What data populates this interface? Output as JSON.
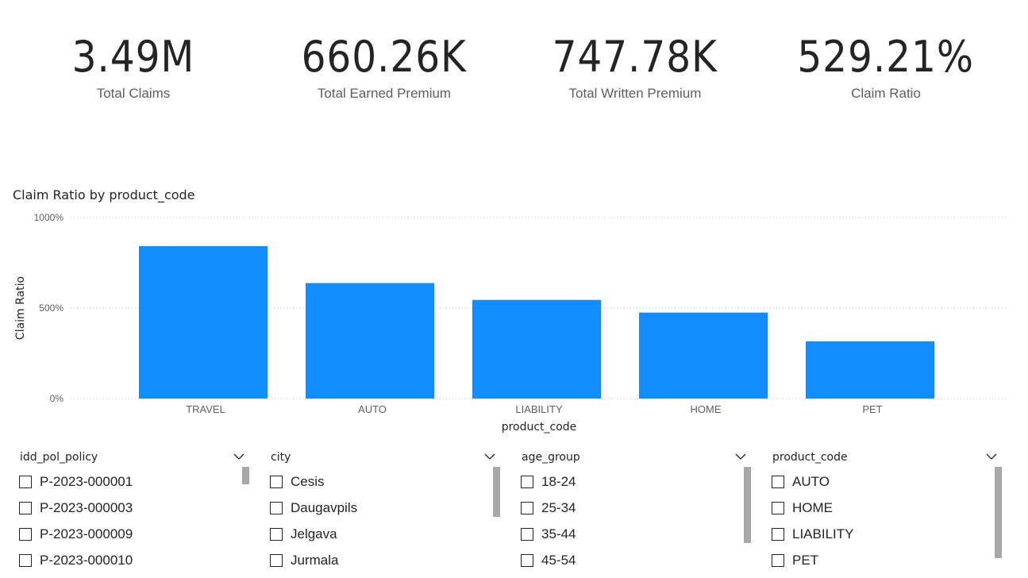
{
  "kpis": [
    {
      "value": "3.49M",
      "label": "Total Claims"
    },
    {
      "value": "660.26K",
      "label": "Total Earned Premium"
    },
    {
      "value": "747.78K",
      "label": "Total Written Premium"
    },
    {
      "value": "529.21%",
      "label": "Claim Ratio"
    }
  ],
  "chart_data": {
    "type": "bar",
    "title": "Claim Ratio by product_code",
    "xlabel": "product_code",
    "ylabel": "Claim Ratio",
    "categories": [
      "TRAVEL",
      "AUTO",
      "LIABILITY",
      "HOME",
      "PET"
    ],
    "values": [
      842,
      638,
      545,
      475,
      316
    ],
    "ylim": [
      0,
      1000
    ],
    "yticks": [
      "0%",
      "500%",
      "1000%"
    ],
    "grid": true,
    "bar_color": "#118DFF"
  },
  "slicers": [
    {
      "title": "idd_pol_policy",
      "items": [
        "P-2023-000001",
        "P-2023-000003",
        "P-2023-000009",
        "P-2023-000010"
      ]
    },
    {
      "title": "city",
      "items": [
        "Cesis",
        "Daugavpils",
        "Jelgava",
        "Jurmala"
      ]
    },
    {
      "title": "age_group",
      "items": [
        "18-24",
        "25-34",
        "35-44",
        "45-54"
      ]
    },
    {
      "title": "product_code",
      "items": [
        "AUTO",
        "HOME",
        "LIABILITY",
        "PET"
      ]
    }
  ],
  "icons": {
    "dropdown": "chevron-down-icon"
  },
  "colors": {
    "scrollbar": "#A8A8A8",
    "text": "#252423",
    "muted": "#605E5C"
  }
}
